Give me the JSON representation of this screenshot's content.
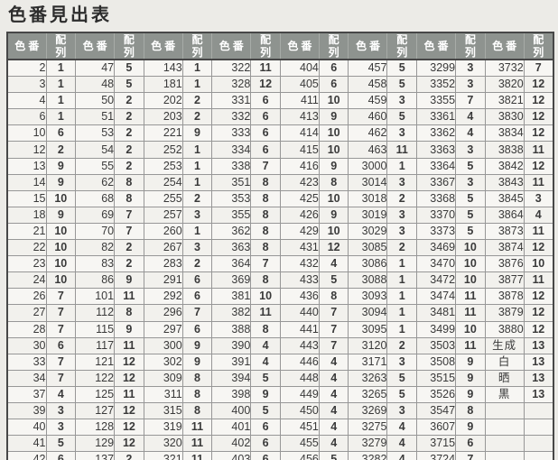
{
  "title": "色番見出表",
  "colors": {
    "page_bg": "#ecebe7",
    "header_bg": "#8e938f",
    "header_text": "#ffffff",
    "cell_bg": "#f7f6f3",
    "grid_border": "#979797",
    "outer_border": "#474747",
    "body_text": "#3a3a3a"
  },
  "table": {
    "columns": [
      "色番",
      "配列",
      "色番",
      "配列",
      "色番",
      "配列",
      "色番",
      "配列",
      "色番",
      "配列",
      "色番",
      "配列",
      "色番",
      "配列",
      "色番",
      "配列"
    ],
    "rows": [
      [
        "2",
        "1",
        "47",
        "5",
        "143",
        "1",
        "322",
        "11",
        "404",
        "6",
        "457",
        "5",
        "3299",
        "3",
        "3732",
        "7"
      ],
      [
        "3",
        "1",
        "48",
        "5",
        "181",
        "1",
        "328",
        "12",
        "405",
        "6",
        "458",
        "5",
        "3352",
        "3",
        "3820",
        "12"
      ],
      [
        "4",
        "1",
        "50",
        "2",
        "202",
        "2",
        "331",
        "6",
        "411",
        "10",
        "459",
        "3",
        "3355",
        "7",
        "3821",
        "12"
      ],
      [
        "6",
        "1",
        "51",
        "2",
        "203",
        "2",
        "332",
        "6",
        "413",
        "9",
        "460",
        "5",
        "3361",
        "4",
        "3830",
        "12"
      ],
      [
        "10",
        "6",
        "53",
        "2",
        "221",
        "9",
        "333",
        "6",
        "414",
        "10",
        "462",
        "3",
        "3362",
        "4",
        "3834",
        "12"
      ],
      [
        "12",
        "2",
        "54",
        "2",
        "252",
        "1",
        "334",
        "6",
        "415",
        "10",
        "463",
        "11",
        "3363",
        "3",
        "3838",
        "11"
      ],
      [
        "13",
        "9",
        "55",
        "2",
        "253",
        "1",
        "338",
        "7",
        "416",
        "9",
        "3000",
        "1",
        "3364",
        "5",
        "3842",
        "12"
      ],
      [
        "14",
        "9",
        "62",
        "8",
        "254",
        "1",
        "351",
        "8",
        "423",
        "8",
        "3014",
        "3",
        "3367",
        "3",
        "3843",
        "11"
      ],
      [
        "15",
        "10",
        "68",
        "8",
        "255",
        "2",
        "353",
        "8",
        "425",
        "10",
        "3018",
        "2",
        "3368",
        "5",
        "3845",
        "3"
      ],
      [
        "18",
        "9",
        "69",
        "7",
        "257",
        "3",
        "355",
        "8",
        "426",
        "9",
        "3019",
        "3",
        "3370",
        "5",
        "3864",
        "4"
      ],
      [
        "21",
        "10",
        "70",
        "7",
        "260",
        "1",
        "362",
        "8",
        "429",
        "10",
        "3029",
        "3",
        "3373",
        "5",
        "3873",
        "11"
      ],
      [
        "22",
        "10",
        "82",
        "2",
        "267",
        "3",
        "363",
        "8",
        "431",
        "12",
        "3085",
        "2",
        "3469",
        "10",
        "3874",
        "12"
      ],
      [
        "23",
        "10",
        "83",
        "2",
        "283",
        "2",
        "364",
        "7",
        "432",
        "4",
        "3086",
        "1",
        "3470",
        "10",
        "3876",
        "10"
      ],
      [
        "24",
        "10",
        "86",
        "9",
        "291",
        "6",
        "369",
        "8",
        "433",
        "5",
        "3088",
        "1",
        "3472",
        "10",
        "3877",
        "11"
      ],
      [
        "26",
        "7",
        "101",
        "11",
        "292",
        "6",
        "381",
        "10",
        "436",
        "8",
        "3093",
        "1",
        "3474",
        "11",
        "3878",
        "12"
      ],
      [
        "27",
        "7",
        "112",
        "8",
        "296",
        "7",
        "382",
        "11",
        "440",
        "7",
        "3094",
        "1",
        "3481",
        "11",
        "3879",
        "12"
      ],
      [
        "28",
        "7",
        "115",
        "9",
        "297",
        "6",
        "388",
        "8",
        "441",
        "7",
        "3095",
        "1",
        "3499",
        "10",
        "3880",
        "12"
      ],
      [
        "30",
        "6",
        "117",
        "11",
        "300",
        "9",
        "390",
        "4",
        "443",
        "7",
        "3120",
        "2",
        "3503",
        "11",
        "生成",
        "13"
      ],
      [
        "33",
        "7",
        "121",
        "12",
        "302",
        "9",
        "391",
        "4",
        "446",
        "4",
        "3171",
        "3",
        "3508",
        "9",
        "白",
        "13"
      ],
      [
        "34",
        "7",
        "122",
        "12",
        "309",
        "8",
        "394",
        "5",
        "448",
        "4",
        "3263",
        "5",
        "3515",
        "9",
        "晒",
        "13"
      ],
      [
        "37",
        "4",
        "125",
        "11",
        "311",
        "8",
        "398",
        "9",
        "449",
        "4",
        "3265",
        "5",
        "3526",
        "9",
        "黒",
        "13"
      ],
      [
        "39",
        "3",
        "127",
        "12",
        "315",
        "8",
        "400",
        "5",
        "450",
        "4",
        "3269",
        "3",
        "3547",
        "8",
        "",
        ""
      ],
      [
        "40",
        "3",
        "128",
        "12",
        "319",
        "11",
        "401",
        "6",
        "451",
        "4",
        "3275",
        "4",
        "3607",
        "9",
        "",
        ""
      ],
      [
        "41",
        "5",
        "129",
        "12",
        "320",
        "11",
        "402",
        "6",
        "455",
        "4",
        "3279",
        "4",
        "3715",
        "6",
        "",
        ""
      ],
      [
        "42",
        "6",
        "137",
        "2",
        "321",
        "11",
        "403",
        "6",
        "456",
        "5",
        "3282",
        "4",
        "3724",
        "7",
        "",
        ""
      ]
    ]
  }
}
